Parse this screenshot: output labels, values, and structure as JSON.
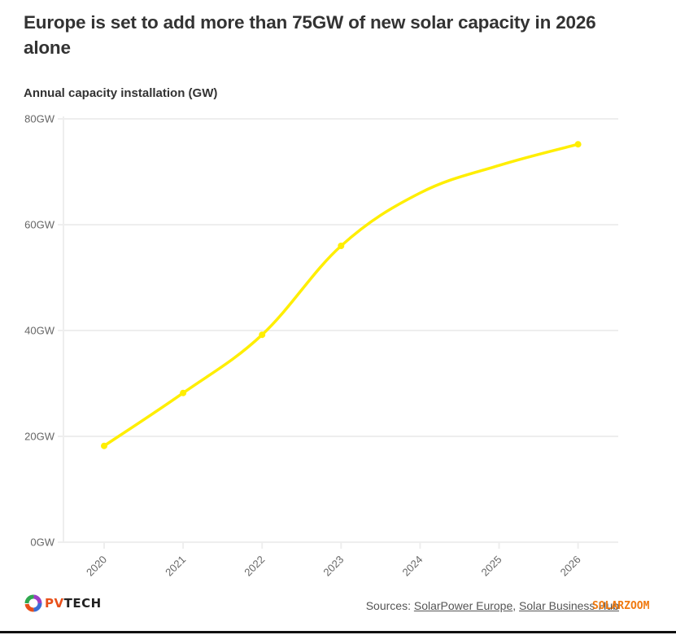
{
  "header": {
    "title": "Europe is set to add more than 75GW of new solar capacity in 2026 alone",
    "subtitle": "Annual capacity installation (GW)"
  },
  "chart_data": {
    "type": "line",
    "title": "Europe is set to add more than 75GW of new solar capacity in 2026 alone",
    "subtitle": "Annual capacity installation (GW)",
    "xlabel": "",
    "ylabel": "Annual capacity installation (GW)",
    "categories": [
      "2020",
      "2021",
      "2022",
      "2023",
      "2024",
      "2025",
      "2026"
    ],
    "series": [
      {
        "name": "Annual capacity installation (GW)",
        "values": [
          18.2,
          28.2,
          39.2,
          56.0,
          66.0,
          71.2,
          75.2
        ],
        "markers": [
          true,
          true,
          true,
          true,
          false,
          false,
          true
        ],
        "color": "#ffee00"
      }
    ],
    "ylim": [
      0,
      80
    ],
    "yticks": [
      0,
      20,
      40,
      60,
      80
    ],
    "ytick_labels": [
      "0GW",
      "20GW",
      "40GW",
      "60GW",
      "80GW"
    ],
    "grid": true,
    "legend": "none",
    "curve": "smooth"
  },
  "footer": {
    "sources_prefix": "Sources: ",
    "sources": [
      "SolarPower Europe",
      "Solar Business Hub"
    ],
    "separator": ", ",
    "logo_text_pv": "PV",
    "logo_text_tech": "TECH",
    "watermark": "SOLARZOOM"
  },
  "colors": {
    "line": "#ffee00",
    "grid": "#eeeeee",
    "title": "#333333",
    "axis_label": "#666666"
  }
}
